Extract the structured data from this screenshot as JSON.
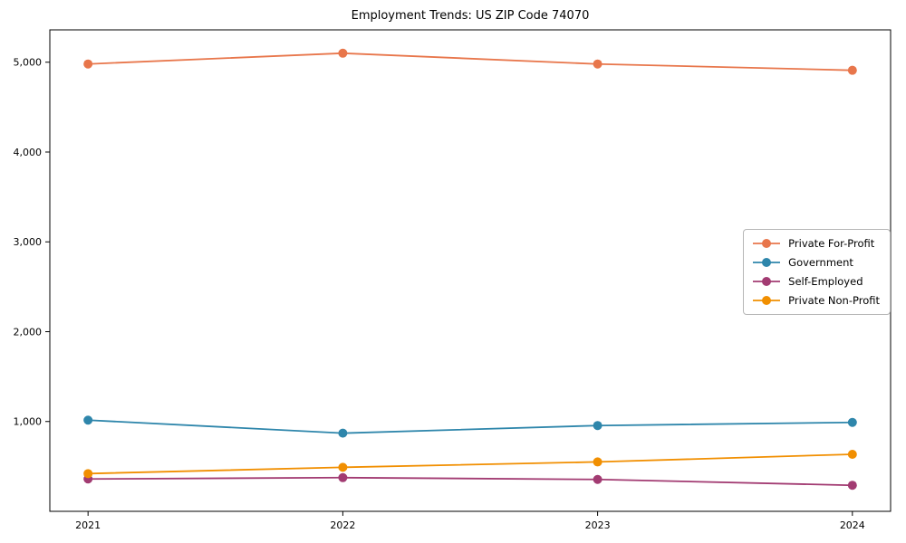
{
  "title": "Employment Trends: US ZIP Code 74070",
  "chart_data": {
    "type": "line",
    "title": "Employment Trends: US ZIP Code 74070",
    "xlabel": "",
    "ylabel": "",
    "x": [
      2021,
      2022,
      2023,
      2024
    ],
    "series": [
      {
        "name": "Private For-Profit",
        "color": "#E8764B",
        "values": [
          4980,
          5100,
          4980,
          4910
        ]
      },
      {
        "name": "Government",
        "color": "#2E86AB",
        "values": [
          1015,
          870,
          955,
          990
        ]
      },
      {
        "name": "Self-Employed",
        "color": "#A23B72",
        "values": [
          360,
          375,
          355,
          290
        ]
      },
      {
        "name": "Private Non-Profit",
        "color": "#F18F01",
        "values": [
          420,
          490,
          550,
          635
        ]
      }
    ],
    "xticks": [
      2021,
      2022,
      2023,
      2024
    ],
    "yticks": [
      1000,
      2000,
      3000,
      4000,
      5000
    ],
    "xlim": [
      2020.85,
      2024.15
    ],
    "ylim": [
      0,
      5360
    ],
    "grid": false,
    "legend_position": "center-right",
    "marker": "circle",
    "axis_color": "#000000"
  }
}
